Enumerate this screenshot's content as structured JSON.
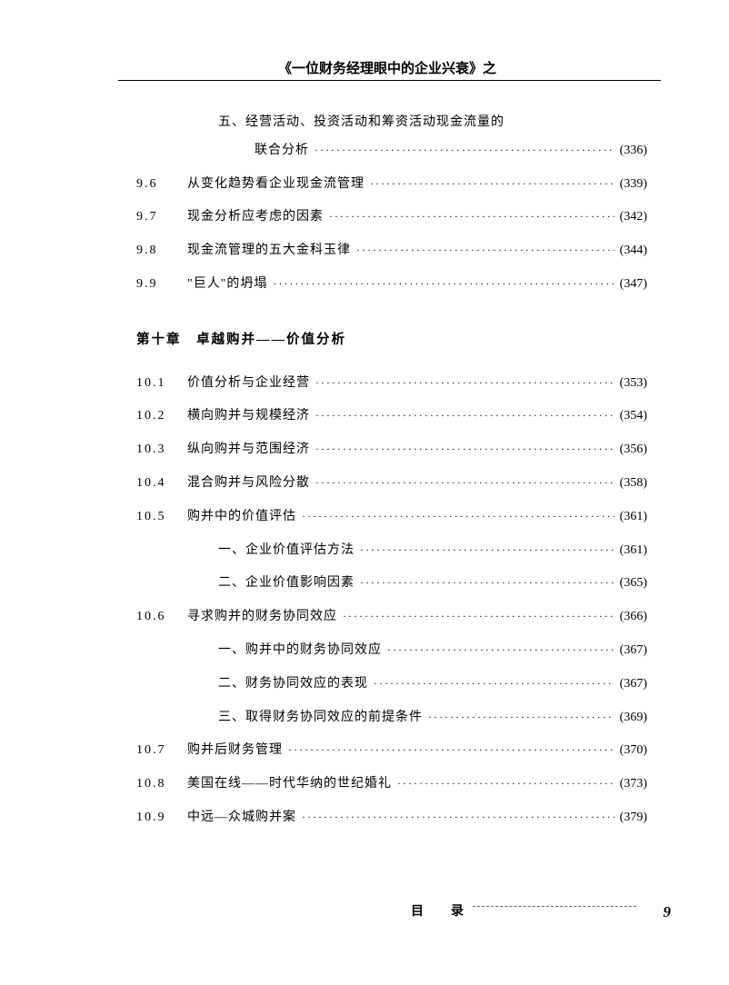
{
  "header": {
    "title": "《一位财务经理眼中的企业兴衰》之"
  },
  "top_section": {
    "sub_head": "五、经营活动、投资活动和筹资活动现金流量的",
    "sub_head2": "联合分析",
    "sub_head_page": "(336)",
    "items": [
      {
        "num": "9.6",
        "label": "从变化趋势看企业现金流管理",
        "page": "(339)"
      },
      {
        "num": "9.7",
        "label": "现金分析应考虑的因素",
        "page": "(342)"
      },
      {
        "num": "9.8",
        "label": "现金流管理的五大金科玉律",
        "page": "(344)"
      },
      {
        "num": "9.9",
        "label": "\"巨人\"的坍塌",
        "page": "(347)"
      }
    ]
  },
  "chapter10": {
    "title": "第十章　卓越购并——价值分析",
    "items": [
      {
        "num": "10.1",
        "label": "价值分析与企业经营",
        "page": "(353)"
      },
      {
        "num": "10.2",
        "label": "横向购并与规模经济",
        "page": "(354)"
      },
      {
        "num": "10.3",
        "label": "纵向购并与范围经济",
        "page": "(356)"
      },
      {
        "num": "10.4",
        "label": "混合购并与风险分散",
        "page": "(358)"
      },
      {
        "num": "10.5",
        "label": "购并中的价值评估",
        "page": "(361)"
      }
    ],
    "subs105": [
      {
        "label": "一、企业价值评估方法",
        "page": "(361)"
      },
      {
        "label": "二、企业价值影响因素",
        "page": "(365)"
      }
    ],
    "item106": {
      "num": "10.6",
      "label": "寻求购并的财务协同效应",
      "page": "(366)"
    },
    "subs106": [
      {
        "label": "一、购并中的财务协同效应",
        "page": "(367)"
      },
      {
        "label": "二、财务协同效应的表现",
        "page": "(367)"
      },
      {
        "label": "三、取得财务协同效应的前提条件",
        "page": "(369)"
      }
    ],
    "items_tail": [
      {
        "num": "10.7",
        "label": "购并后财务管理",
        "page": "(370)"
      },
      {
        "num": "10.8",
        "label": "美国在线——时代华纳的世纪婚礼",
        "page": "(373)"
      },
      {
        "num": "10.9",
        "label": "中远—众城购并案",
        "page": "(379)"
      }
    ]
  },
  "footer": {
    "label": "目　录",
    "page_number": "9"
  }
}
